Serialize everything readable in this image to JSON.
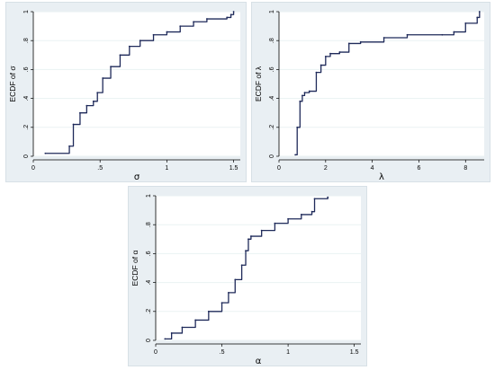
{
  "chart_data": [
    {
      "type": "line",
      "step": true,
      "xlabel": "σ",
      "ylabel": "ECDF of σ",
      "xlim": [
        0,
        1.55
      ],
      "ylim": [
        0,
        1
      ],
      "xticks": [
        0,
        0.5,
        1,
        1.5
      ],
      "xtick_labels": [
        "0",
        ".5",
        "1",
        "1.5"
      ],
      "yticks": [
        0,
        0.2,
        0.4,
        0.6,
        0.8,
        1
      ],
      "ytick_labels": [
        "0",
        ".2",
        ".4",
        ".6",
        ".8",
        "1"
      ],
      "grid": true,
      "series": [
        {
          "color": "#1f2a5a",
          "x": [
            0.09,
            0.27,
            0.3,
            0.35,
            0.4,
            0.45,
            0.48,
            0.52,
            0.58,
            0.65,
            0.72,
            0.8,
            0.9,
            1.0,
            1.1,
            1.2,
            1.3,
            1.45,
            1.48,
            1.5
          ],
          "y": [
            0.02,
            0.07,
            0.22,
            0.3,
            0.35,
            0.38,
            0.44,
            0.54,
            0.62,
            0.7,
            0.76,
            0.8,
            0.84,
            0.86,
            0.9,
            0.93,
            0.95,
            0.96,
            0.98,
            1.0
          ]
        }
      ]
    },
    {
      "type": "line",
      "step": true,
      "xlabel": "λ",
      "ylabel": "ECDF of λ",
      "xlim": [
        0,
        8.8
      ],
      "ylim": [
        0,
        1
      ],
      "xticks": [
        0,
        2,
        4,
        6,
        8
      ],
      "xtick_labels": [
        "0",
        "2",
        "4",
        "6",
        "8"
      ],
      "yticks": [
        0,
        0.2,
        0.4,
        0.6,
        0.8,
        1
      ],
      "ytick_labels": [
        "0",
        ".2",
        ".4",
        ".6",
        ".8",
        "1"
      ],
      "grid": true,
      "series": [
        {
          "color": "#1f2a5a",
          "x": [
            0.7,
            0.78,
            0.9,
            1.0,
            1.1,
            1.3,
            1.6,
            1.8,
            2.0,
            2.2,
            2.6,
            3.0,
            3.5,
            4.5,
            5.5,
            7.0,
            7.5,
            8.0,
            8.5,
            8.6
          ],
          "y": [
            0.01,
            0.2,
            0.38,
            0.42,
            0.44,
            0.45,
            0.58,
            0.63,
            0.69,
            0.71,
            0.72,
            0.78,
            0.79,
            0.82,
            0.84,
            0.84,
            0.86,
            0.92,
            0.96,
            1.0
          ]
        }
      ]
    },
    {
      "type": "line",
      "step": true,
      "xlabel": "α",
      "ylabel": "ECDF of α",
      "xlim": [
        0,
        1.55
      ],
      "ylim": [
        0,
        1
      ],
      "xticks": [
        0,
        0.5,
        1,
        1.5
      ],
      "xtick_labels": [
        "0",
        ".5",
        "1",
        "1.5"
      ],
      "yticks": [
        0,
        0.2,
        0.4,
        0.6,
        0.8,
        1
      ],
      "ytick_labels": [
        "0",
        ".2",
        ".4",
        ".6",
        ".8",
        "1"
      ],
      "grid": true,
      "series": [
        {
          "color": "#1f2a5a",
          "x": [
            0.07,
            0.12,
            0.2,
            0.3,
            0.4,
            0.5,
            0.55,
            0.6,
            0.65,
            0.68,
            0.7,
            0.72,
            0.8,
            0.9,
            1.0,
            1.1,
            1.18,
            1.2,
            1.3
          ],
          "y": [
            0.01,
            0.05,
            0.09,
            0.14,
            0.2,
            0.26,
            0.33,
            0.42,
            0.52,
            0.62,
            0.7,
            0.72,
            0.76,
            0.81,
            0.84,
            0.87,
            0.89,
            0.98,
            0.99
          ]
        }
      ]
    }
  ]
}
